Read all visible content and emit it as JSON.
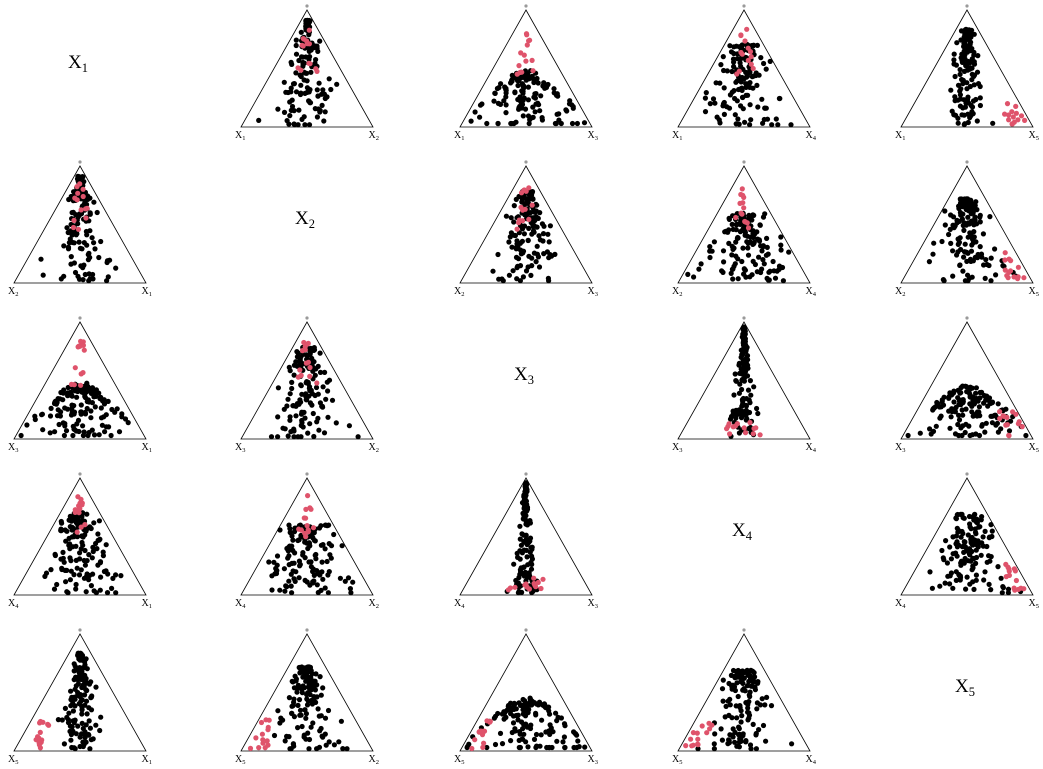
{
  "chart_data": {
    "type": "scatter",
    "variables": [
      "X1",
      "X2",
      "X3",
      "X4",
      "X5"
    ],
    "diagonal_labels": [
      {
        "base": "X",
        "sub": "1"
      },
      {
        "base": "X",
        "sub": "2"
      },
      {
        "base": "X",
        "sub": "3"
      },
      {
        "base": "X",
        "sub": "4"
      },
      {
        "base": "X",
        "sub": "5"
      }
    ],
    "apex_marker": "*",
    "colors": {
      "group_a": "#000000",
      "group_b": "#df536b",
      "apex": "#9a9a9a"
    },
    "point_counts": {
      "group_a": 140,
      "group_b": 14
    },
    "panels": [
      {
        "row": 1,
        "col": 2,
        "left": "X1",
        "right": "X2"
      },
      {
        "row": 1,
        "col": 3,
        "left": "X1",
        "right": "X3"
      },
      {
        "row": 1,
        "col": 4,
        "left": "X1",
        "right": "X4"
      },
      {
        "row": 1,
        "col": 5,
        "left": "X1",
        "right": "X5"
      },
      {
        "row": 2,
        "col": 1,
        "left": "X2",
        "right": "X1"
      },
      {
        "row": 2,
        "col": 3,
        "left": "X2",
        "right": "X3"
      },
      {
        "row": 2,
        "col": 4,
        "left": "X2",
        "right": "X4"
      },
      {
        "row": 2,
        "col": 5,
        "left": "X2",
        "right": "X5"
      },
      {
        "row": 3,
        "col": 1,
        "left": "X3",
        "right": "X1"
      },
      {
        "row": 3,
        "col": 2,
        "left": "X3",
        "right": "X2"
      },
      {
        "row": 3,
        "col": 4,
        "left": "X3",
        "right": "X4"
      },
      {
        "row": 3,
        "col": 5,
        "left": "X3",
        "right": "X5"
      },
      {
        "row": 4,
        "col": 1,
        "left": "X4",
        "right": "X1"
      },
      {
        "row": 4,
        "col": 2,
        "left": "X4",
        "right": "X2"
      },
      {
        "row": 4,
        "col": 3,
        "left": "X4",
        "right": "X3"
      },
      {
        "row": 4,
        "col": 5,
        "left": "X4",
        "right": "X5"
      },
      {
        "row": 5,
        "col": 1,
        "left": "X5",
        "right": "X1"
      },
      {
        "row": 5,
        "col": 2,
        "left": "X5",
        "right": "X2"
      },
      {
        "row": 5,
        "col": 3,
        "left": "X5",
        "right": "X3"
      },
      {
        "row": 5,
        "col": 4,
        "left": "X5",
        "right": "X4"
      }
    ]
  }
}
